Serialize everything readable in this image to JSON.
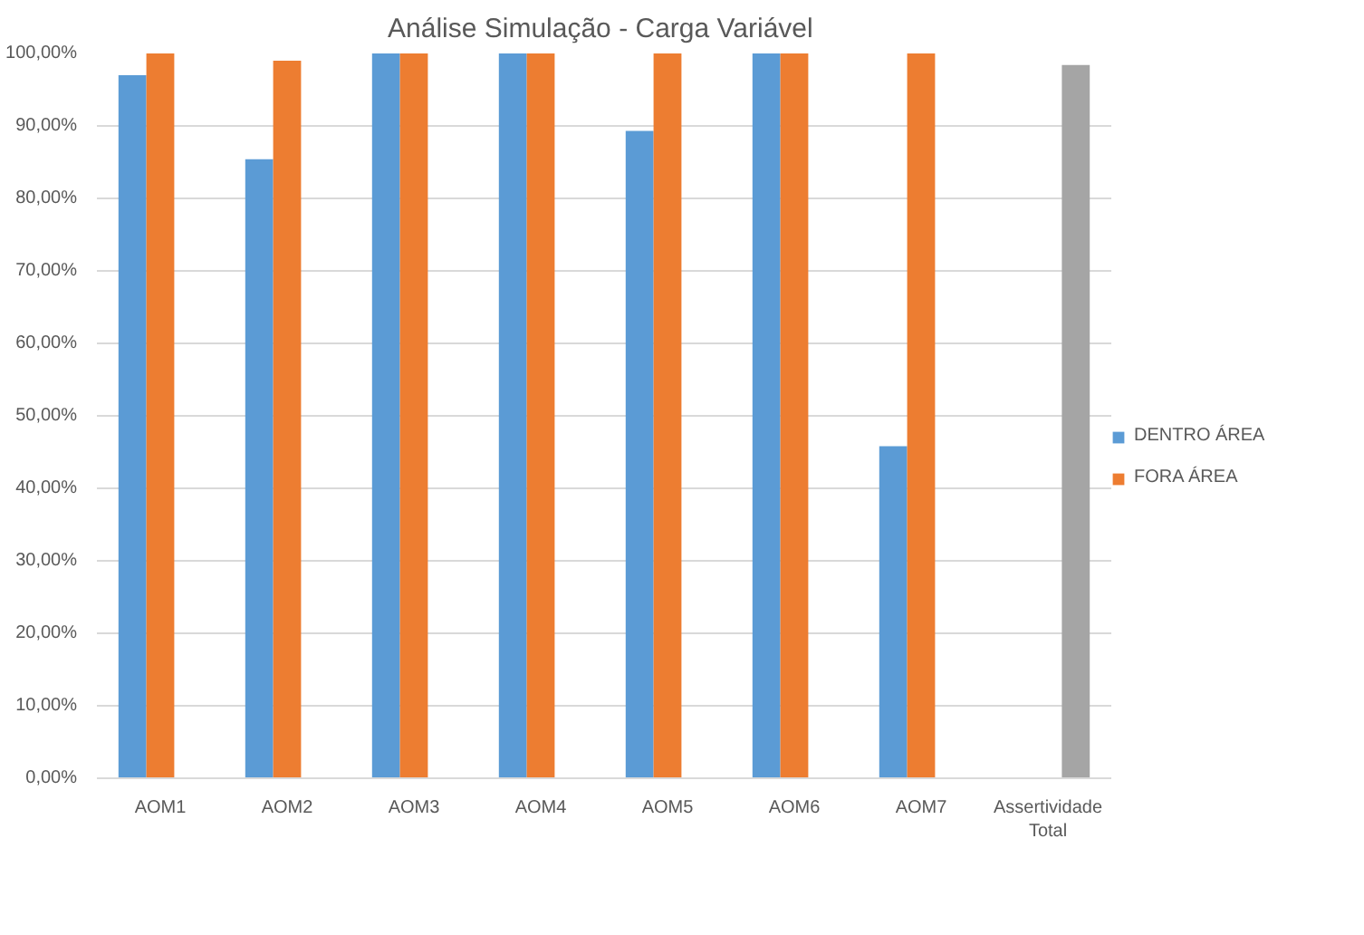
{
  "chart_data": {
    "type": "bar",
    "title": "Análise Simulação  - Carga Variável",
    "categories": [
      "AOM1",
      "AOM2",
      "AOM3",
      "AOM4",
      "AOM5",
      "AOM6",
      "AOM7",
      "Assertividade Total"
    ],
    "series": [
      {
        "name": "DENTRO ÁREA",
        "color": "#5b9bd5",
        "values": [
          97.0,
          85.4,
          100,
          100,
          89.3,
          100,
          45.8,
          null
        ]
      },
      {
        "name": "FORA ÁREA",
        "color": "#ed7d31",
        "values": [
          100,
          99.0,
          100,
          100,
          100,
          100,
          100,
          null
        ]
      },
      {
        "color": "#a5a5a5",
        "values": [
          null,
          null,
          null,
          null,
          null,
          null,
          null,
          98.4
        ]
      }
    ],
    "ylim": [
      0,
      100
    ],
    "yticks": [
      {
        "value": 0,
        "label": "0,00%"
      },
      {
        "value": 10,
        "label": "10,00%"
      },
      {
        "value": 20,
        "label": "20,00%"
      },
      {
        "value": 30,
        "label": "30,00%"
      },
      {
        "value": 40,
        "label": "40,00%"
      },
      {
        "value": 50,
        "label": "50,00%"
      },
      {
        "value": 60,
        "label": "60,00%"
      },
      {
        "value": 70,
        "label": "70,00%"
      },
      {
        "value": 80,
        "label": "80,00%"
      },
      {
        "value": 90,
        "label": "90,00%"
      },
      {
        "value": 100,
        "label": "100,00%"
      }
    ],
    "grid": "y",
    "legend": "right"
  }
}
